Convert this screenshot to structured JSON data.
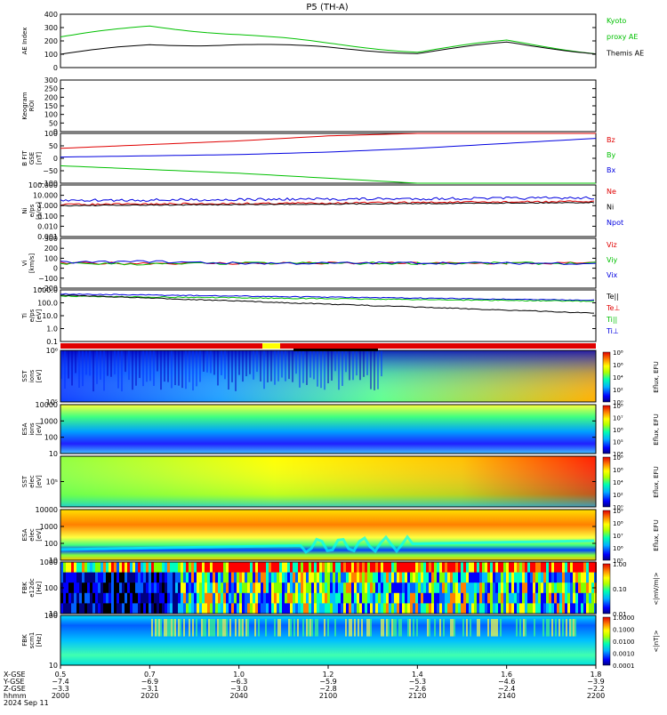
{
  "title": "P5 (TH-A)",
  "date": "2024 Sep 11",
  "colors": {
    "red": "#e00000",
    "green": "#00c000",
    "blue": "#0000e0",
    "black": "#000000"
  },
  "panels": [
    {
      "id": "ae",
      "ylabel": [
        "AE Index"
      ],
      "yticks": [
        "400",
        "300",
        "200",
        "100",
        "0"
      ],
      "right_labels": [
        {
          "text": "Kyoto",
          "color": "green"
        },
        {
          "text": "proxy AE",
          "color": "green"
        },
        {
          "text": "Themis AE",
          "color": "black"
        }
      ]
    },
    {
      "id": "keogram",
      "ylabel": [
        "Keogram",
        "ROI"
      ],
      "yticks": [
        "300",
        "250",
        "200",
        "150",
        "100",
        "50",
        "0"
      ],
      "right_labels": []
    },
    {
      "id": "bfield",
      "ylabel": [
        "B FIT",
        "GSE",
        "[nT]"
      ],
      "yticks": [
        "100",
        "50",
        "0",
        "−50",
        "−100"
      ],
      "right_labels": [
        {
          "text": "Bz",
          "color": "red"
        },
        {
          "text": "By",
          "color": "green"
        },
        {
          "text": "Bx",
          "color": "blue"
        }
      ]
    },
    {
      "id": "density",
      "ylabel": [
        "Ni",
        "e/ps",
        "[1/cc]"
      ],
      "yticks": [
        "100.000",
        "10.000",
        "1.000",
        "0.100",
        "0.010",
        "0.001"
      ],
      "right_labels": [
        {
          "text": "Ne",
          "color": "red"
        },
        {
          "text": "Ni",
          "color": "black"
        },
        {
          "text": "Npot",
          "color": "blue"
        }
      ]
    },
    {
      "id": "velocity",
      "ylabel": [
        "Vi",
        "[km/s]"
      ],
      "yticks": [
        "300",
        "200",
        "100",
        "0",
        "−100",
        "−200"
      ],
      "right_labels": [
        {
          "text": "Viz",
          "color": "red"
        },
        {
          "text": "Viy",
          "color": "green"
        },
        {
          "text": "Vix",
          "color": "blue"
        }
      ]
    },
    {
      "id": "temp",
      "ylabel": [
        "Ti",
        "e/ps",
        "[eV]"
      ],
      "yticks": [
        "1000.0",
        "100.0",
        "10.0",
        "1.0",
        "0.1"
      ],
      "right_labels": [
        {
          "text": "Te||",
          "color": "black"
        },
        {
          "text": "Te⊥",
          "color": "red"
        },
        {
          "text": "Ti||",
          "color": "green"
        },
        {
          "text": "Ti⊥",
          "color": "blue"
        }
      ]
    },
    {
      "id": "sst_i",
      "ylabel": [
        "SST",
        "ions",
        "[eV]"
      ],
      "yticks": [
        "10⁶",
        "10⁵"
      ],
      "right_labels": []
    },
    {
      "id": "esa_i",
      "ylabel": [
        "ESA",
        "ions",
        "[eV]"
      ],
      "yticks": [
        "10000",
        "1000",
        "100",
        "10"
      ],
      "right_labels": []
    },
    {
      "id": "sst_e",
      "ylabel": [
        "SST",
        "elec",
        "[eV]"
      ],
      "yticks": [
        "10⁵"
      ],
      "right_labels": []
    },
    {
      "id": "esa_e",
      "ylabel": [
        "ESA",
        "elec",
        "[eV]"
      ],
      "yticks": [
        "10000",
        "1000",
        "100",
        "10"
      ],
      "right_labels": []
    },
    {
      "id": "fbk_e",
      "ylabel": [
        "FBK",
        "e12dc",
        "[Hz]"
      ],
      "yticks": [
        "1000",
        "100",
        "10"
      ],
      "right_labels": []
    },
    {
      "id": "fbk_b",
      "ylabel": [
        "FBK",
        "scm1",
        "[Hz]"
      ],
      "yticks": [
        "100",
        "10"
      ],
      "right_labels": []
    }
  ],
  "colorbars": [
    {
      "label": "Eflux, EFU",
      "ticks": [
        "10⁸",
        "10⁶",
        "10⁴",
        "10²",
        "10⁰"
      ]
    },
    {
      "label": "Eflux, EFU",
      "ticks": [
        "10⁸",
        "10⁷",
        "10⁶",
        "10⁵",
        "10⁴"
      ]
    },
    {
      "label": "Eflux, EFU",
      "ticks": [
        "10⁸",
        "10⁶",
        "10⁴",
        "10²",
        "10⁰"
      ]
    },
    {
      "label": "Eflux, EFU",
      "ticks": [
        "10⁹",
        "10⁸",
        "10⁷",
        "10⁶",
        "10⁵"
      ]
    },
    {
      "label": "<|mV/m|>",
      "ticks": [
        "1.00",
        "0.10",
        "0.01"
      ]
    },
    {
      "label": "<|nT|>",
      "ticks": [
        "1.0000",
        "0.1000",
        "0.0100",
        "0.0010",
        "0.0001"
      ]
    }
  ],
  "xaxis": {
    "row_labels": [
      "X-GSE",
      "Y-GSE",
      "Z-GSE",
      "hhmm",
      "2024 Sep 11"
    ],
    "columns": [
      [
        "0.5",
        "−7.4",
        "−3.3",
        "2000"
      ],
      [
        "0.7",
        "−6.9",
        "−3.1",
        "2020"
      ],
      [
        "1.0",
        "−6.3",
        "−3.0",
        "2040"
      ],
      [
        "1.2",
        "−5.9",
        "−2.8",
        "2100"
      ],
      [
        "1.4",
        "−5.3",
        "−2.6",
        "2120"
      ],
      [
        "1.6",
        "−4.6",
        "−2.4",
        "2140"
      ],
      [
        "1.8",
        "−3.9",
        "−2.2",
        "2200"
      ]
    ]
  },
  "chart_data": [
    {
      "type": "line",
      "title": "P5 (TH-A)",
      "ylabel": "AE Index",
      "ylim": [
        0,
        400
      ],
      "x": [
        "2000",
        "2020",
        "2040",
        "2100",
        "2120",
        "2140",
        "2200"
      ],
      "series": [
        {
          "name": "Kyoto proxy AE",
          "color": "#00c000",
          "values": [
            230,
            310,
            250,
            180,
            120,
            200,
            110
          ]
        },
        {
          "name": "Themis AE",
          "color": "#000000",
          "values": [
            100,
            170,
            175,
            150,
            110,
            185,
            110
          ]
        }
      ]
    },
    {
      "type": "line",
      "ylabel": "B FIT GSE [nT]",
      "ylim": [
        -100,
        100
      ],
      "x": [
        "2000",
        "2020",
        "2040",
        "2100",
        "2120",
        "2140",
        "2200"
      ],
      "series": [
        {
          "name": "Bz",
          "color": "#e00000",
          "values": [
            40,
            55,
            70,
            90,
            100,
            100,
            100
          ]
        },
        {
          "name": "By",
          "color": "#00c000",
          "values": [
            -30,
            -45,
            -60,
            -80,
            -100,
            -100,
            -100
          ]
        },
        {
          "name": "Bx",
          "color": "#0000e0",
          "values": [
            5,
            10,
            15,
            25,
            40,
            60,
            80
          ]
        }
      ]
    },
    {
      "type": "line",
      "ylabel": "Vi [km/s]",
      "ylim": [
        -300,
        300
      ],
      "x": [
        "2000",
        "2020",
        "2040",
        "2100",
        "2120",
        "2140",
        "2200"
      ],
      "series": [
        {
          "name": "Viz",
          "color": "#e00000",
          "values": [
            0,
            0,
            0,
            0,
            0,
            0,
            0
          ]
        },
        {
          "name": "Viy",
          "color": "#00c000",
          "values": [
            0,
            -10,
            0,
            0,
            0,
            0,
            0
          ]
        },
        {
          "name": "Vix",
          "color": "#0000e0",
          "values": [
            10,
            20,
            0,
            0,
            5,
            0,
            0
          ]
        }
      ]
    }
  ]
}
